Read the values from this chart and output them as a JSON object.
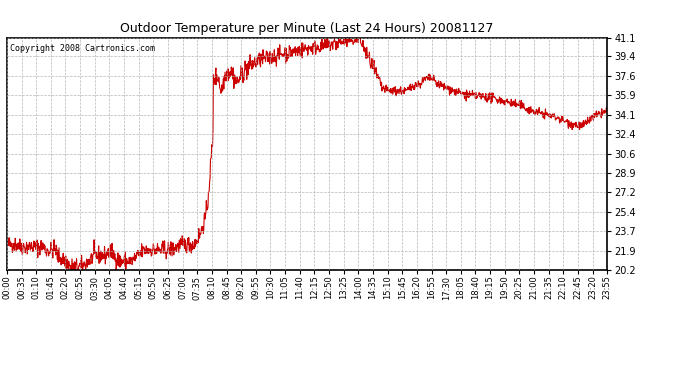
{
  "title": "Outdoor Temperature per Minute (Last 24 Hours) 20081127",
  "copyright_text": "Copyright 2008 Cartronics.com",
  "line_color": "#cc0000",
  "background_color": "#ffffff",
  "plot_bg_color": "#ffffff",
  "grid_color": "#b0b0b0",
  "grid_style": "--",
  "yticks": [
    20.2,
    21.9,
    23.7,
    25.4,
    27.2,
    28.9,
    30.6,
    32.4,
    34.1,
    35.9,
    37.6,
    39.4,
    41.1
  ],
  "ymin": 20.2,
  "ymax": 41.1,
  "xtick_labels": [
    "00:00",
    "00:35",
    "01:10",
    "01:45",
    "02:20",
    "02:55",
    "03:30",
    "04:05",
    "04:40",
    "05:15",
    "05:50",
    "06:25",
    "07:00",
    "07:35",
    "08:10",
    "08:45",
    "09:20",
    "09:55",
    "10:30",
    "11:05",
    "11:40",
    "12:15",
    "12:50",
    "13:25",
    "14:00",
    "14:35",
    "15:10",
    "15:45",
    "16:20",
    "16:55",
    "17:30",
    "18:05",
    "18:40",
    "19:15",
    "19:50",
    "20:25",
    "21:00",
    "21:35",
    "22:10",
    "22:45",
    "23:20",
    "23:55"
  ],
  "seed": 42,
  "n_points": 1440
}
